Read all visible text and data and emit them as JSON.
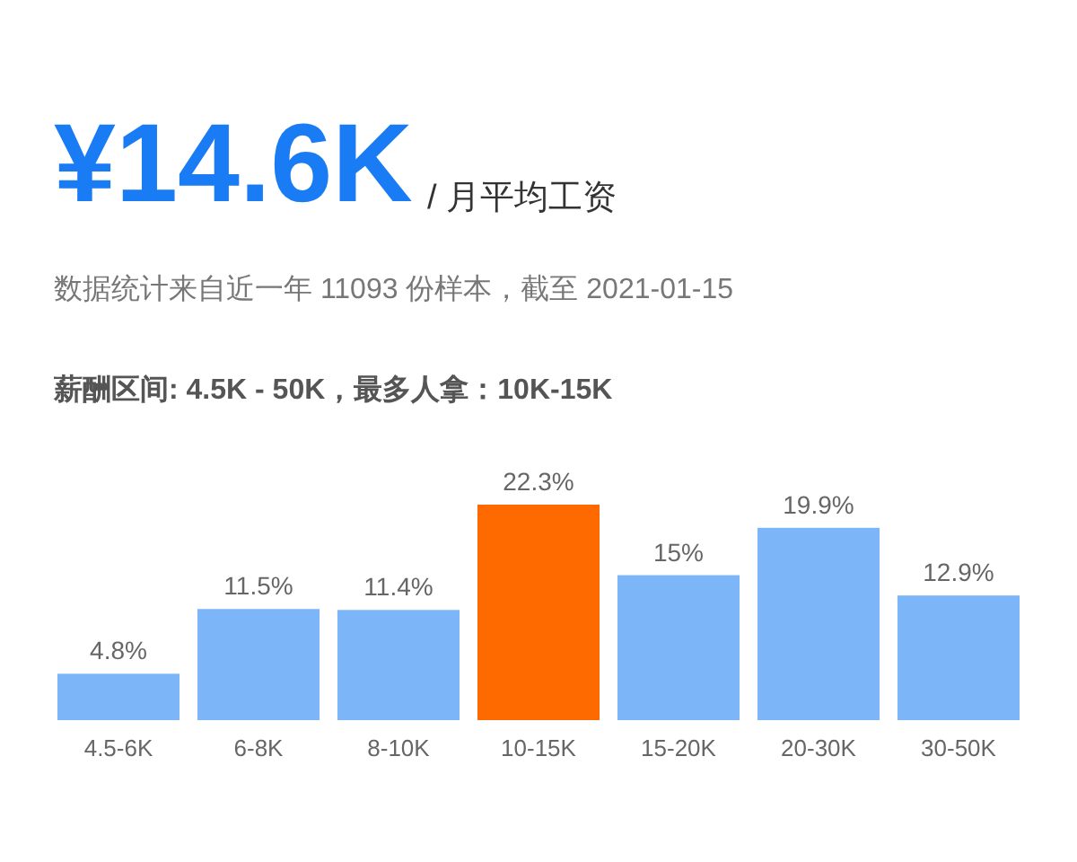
{
  "chart_data": {
    "type": "bar",
    "title": "¥14.6K",
    "subtitle": "/ 月平均工资",
    "annotations": [
      "数据统计来自近一年 11093 份样本，截至 2021-01-15",
      "薪酬区间: 4.5K - 50K，最多人拿：10K-15K"
    ],
    "categories": [
      "4.5-6K",
      "6-8K",
      "8-10K",
      "10-15K",
      "15-20K",
      "20-30K",
      "30-50K"
    ],
    "values": [
      4.8,
      11.5,
      11.4,
      22.3,
      15,
      19.9,
      12.9
    ],
    "colors": [
      "#7db6f8",
      "#7db6f8",
      "#7db6f8",
      "#ff6a00",
      "#7db6f8",
      "#7db6f8",
      "#7db6f8"
    ],
    "value_labels": [
      "4.8%",
      "11.5%",
      "11.4%",
      "22.3%",
      "15%",
      "19.9%",
      "12.9%"
    ]
  }
}
